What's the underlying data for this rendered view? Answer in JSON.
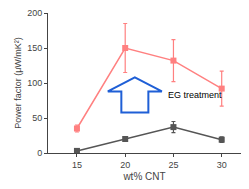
{
  "chart_data": {
    "type": "line",
    "x": [
      15,
      20,
      25,
      30
    ],
    "series": [
      {
        "color": "#ff8080",
        "values": [
          35,
          150,
          132,
          92
        ],
        "yerr": [
          5,
          35,
          30,
          25
        ],
        "marker": "square",
        "line_style": "solid"
      },
      {
        "color": "#555555",
        "values": [
          3,
          20,
          37,
          19
        ],
        "yerr": [
          2,
          3,
          8,
          4
        ],
        "marker": "square",
        "line_style": "solid"
      }
    ],
    "xlabel": "wt% CNT",
    "ylabel": "Power factor (μW/mK²)",
    "xlim": [
      12,
      32
    ],
    "xticks": [
      15,
      20,
      25,
      30
    ],
    "ylim": [
      0,
      200
    ],
    "yticks": [
      0,
      50,
      100,
      150,
      200
    ],
    "annotations": [
      "EG treatment"
    ],
    "grid": false
  }
}
